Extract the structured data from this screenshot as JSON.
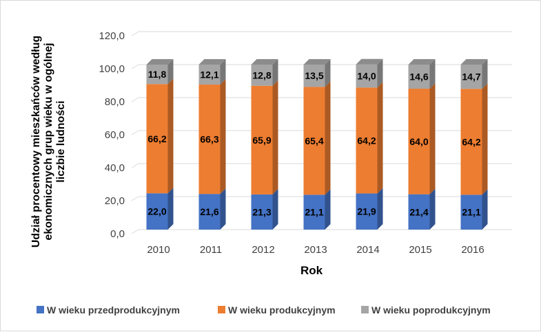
{
  "chart_data": {
    "type": "bar",
    "stacked": true,
    "three_d": true,
    "title": "",
    "xlabel": "Rok",
    "ylabel_lines": [
      "Udział procentowy mieszkańców według",
      "ekonomicznych grup wieku w ogólnej",
      "liczbie ludności"
    ],
    "ylim": [
      0,
      120
    ],
    "ytick_step": 20,
    "ytick_labels": [
      "0,0",
      "20,0",
      "40,0",
      "60,0",
      "80,0",
      "100,0",
      "120,0"
    ],
    "grid": true,
    "legend_position": "bottom",
    "categories": [
      "2010",
      "2011",
      "2012",
      "2013",
      "2014",
      "2015",
      "2016"
    ],
    "series": [
      {
        "name": "W wieku przedprodukcyjnym",
        "color": "#4472C4",
        "values": [
          22.0,
          21.6,
          21.3,
          21.1,
          21.9,
          21.4,
          21.1
        ],
        "labels": [
          "22,0",
          "21,6",
          "21,3",
          "21,1",
          "21,9",
          "21,4",
          "21,1"
        ]
      },
      {
        "name": "W wieku produkcyjnym",
        "color": "#ED7D31",
        "values": [
          66.2,
          66.3,
          65.9,
          65.4,
          64.2,
          64.0,
          64.2
        ],
        "labels": [
          "66,2",
          "66,3",
          "65,9",
          "65,4",
          "64,2",
          "64,0",
          "64,2"
        ]
      },
      {
        "name": "W wieku poprodukcyjnym",
        "color": "#A5A5A5",
        "values": [
          11.8,
          12.1,
          12.8,
          13.5,
          14.0,
          14.6,
          14.7
        ],
        "labels": [
          "11,8",
          "12,1",
          "12,8",
          "13,5",
          "14,0",
          "14,6",
          "14,7"
        ]
      }
    ]
  }
}
